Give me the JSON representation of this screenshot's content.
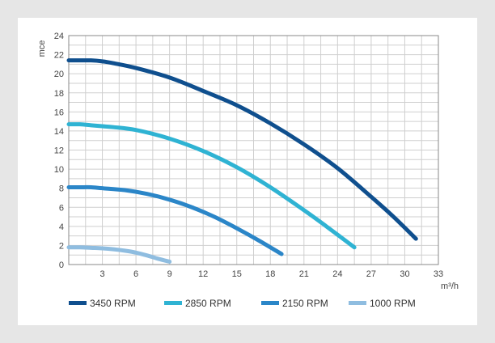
{
  "chart_data": {
    "type": "line",
    "xlabel": "m³/h",
    "ylabel": "mce",
    "xlim": [
      0,
      33
    ],
    "ylim": [
      0,
      24
    ],
    "xticks": [
      3,
      6,
      9,
      12,
      15,
      18,
      21,
      24,
      27,
      30,
      33
    ],
    "yticks": [
      0,
      2,
      4,
      6,
      8,
      10,
      12,
      14,
      16,
      18,
      20,
      22,
      24
    ],
    "grid": true,
    "legend_position": "bottom",
    "series": [
      {
        "name": "3450 RPM",
        "color": "#0f4f8e",
        "x": [
          0,
          1,
          2,
          3,
          4,
          6,
          9,
          12,
          15,
          18,
          21,
          24,
          27,
          29,
          31
        ],
        "y": [
          21.4,
          21.4,
          21.4,
          21.3,
          21.1,
          20.6,
          19.6,
          18.2,
          16.7,
          14.8,
          12.6,
          10.1,
          7.1,
          5.0,
          2.7
        ]
      },
      {
        "name": "2850 RPM",
        "color": "#2fb3d3",
        "x": [
          0,
          1,
          2,
          3,
          4,
          6,
          9,
          12,
          15,
          18,
          21,
          23,
          25.5
        ],
        "y": [
          14.7,
          14.7,
          14.6,
          14.5,
          14.4,
          14.1,
          13.2,
          11.9,
          10.2,
          8.1,
          5.7,
          4.0,
          1.8
        ]
      },
      {
        "name": "2150 RPM",
        "color": "#2b86c8",
        "x": [
          0,
          1,
          2,
          3,
          5,
          7,
          9,
          11,
          13,
          15,
          17,
          19
        ],
        "y": [
          8.1,
          8.1,
          8.1,
          8.0,
          7.8,
          7.4,
          6.8,
          6.0,
          5.0,
          3.8,
          2.5,
          1.1
        ]
      },
      {
        "name": "1000 RPM",
        "color": "#8fbde0",
        "x": [
          0,
          1,
          2,
          3,
          4,
          5,
          6,
          7,
          8,
          9
        ],
        "y": [
          1.8,
          1.8,
          1.75,
          1.7,
          1.6,
          1.45,
          1.25,
          0.95,
          0.6,
          0.3
        ]
      }
    ]
  }
}
